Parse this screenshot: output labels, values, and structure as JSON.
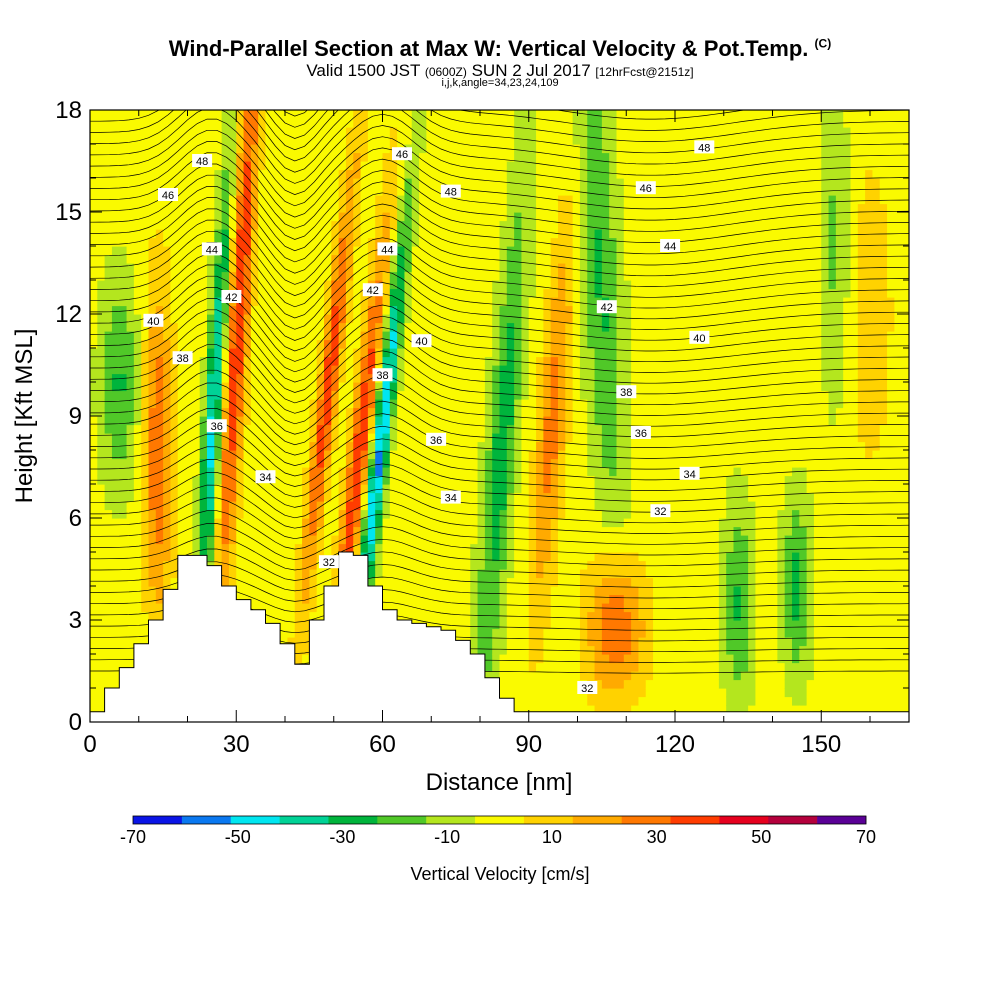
{
  "header": {
    "title": "Wind-Parallel Section at Max W: Vertical Velocity & Pot.Temp.",
    "copyright": "(C)",
    "valid_prefix": "Valid 1500 JST",
    "utc": "(0600Z)",
    "date": "SUN 2 Jul 2017",
    "forecast": "[12hrFcst@2151z]",
    "indices": "i,j,k,angle=34,23,24,109"
  },
  "chart_data": {
    "type": "heatmap",
    "title": "Wind-Parallel Section at Max W: Vertical Velocity & Pot.Temp.",
    "xlabel": "Distance [nm]",
    "ylabel": "Height [Kft MSL]",
    "xlim": [
      0,
      168
    ],
    "ylim": [
      0,
      18
    ],
    "x_ticks": [
      0,
      30,
      60,
      90,
      120,
      150
    ],
    "y_ticks": [
      0,
      3,
      6,
      9,
      12,
      15,
      18
    ],
    "colorbar": {
      "title": "Vertical Velocity [cm/s]",
      "tick_values": [
        -70,
        -50,
        -30,
        -10,
        10,
        30,
        50,
        70
      ],
      "bin_edges": [
        -70,
        -60,
        -50,
        -40,
        -30,
        -20,
        -10,
        0,
        10,
        20,
        30,
        40,
        50,
        60,
        70
      ],
      "colors": [
        "#0a14e6",
        "#0a78f0",
        "#00e6f0",
        "#00d296",
        "#00b43c",
        "#50c828",
        "#b4e61e",
        "#fafa00",
        "#ffd200",
        "#ffaa00",
        "#ff7800",
        "#ff3c00",
        "#e6001e",
        "#b4003c",
        "#5a0096"
      ]
    },
    "potential_temperature_labels": [
      {
        "label": "48",
        "x": 23,
        "y": 16.5
      },
      {
        "label": "46",
        "x": 16,
        "y": 15.5
      },
      {
        "label": "44",
        "x": 25,
        "y": 13.9
      },
      {
        "label": "42",
        "x": 29,
        "y": 12.5
      },
      {
        "label": "40",
        "x": 13,
        "y": 11.8
      },
      {
        "label": "38",
        "x": 19,
        "y": 10.7
      },
      {
        "label": "36",
        "x": 26,
        "y": 8.7
      },
      {
        "label": "34",
        "x": 36,
        "y": 7.2
      },
      {
        "label": "32",
        "x": 49,
        "y": 4.7
      },
      {
        "label": "46",
        "x": 64,
        "y": 16.7
      },
      {
        "label": "48",
        "x": 74,
        "y": 15.6
      },
      {
        "label": "44",
        "x": 61,
        "y": 13.9
      },
      {
        "label": "42",
        "x": 58,
        "y": 12.7
      },
      {
        "label": "40",
        "x": 68,
        "y": 11.2
      },
      {
        "label": "38",
        "x": 60,
        "y": 10.2
      },
      {
        "label": "36",
        "x": 71,
        "y": 8.3
      },
      {
        "label": "34",
        "x": 74,
        "y": 6.6
      },
      {
        "label": "48",
        "x": 126,
        "y": 16.9
      },
      {
        "label": "46",
        "x": 114,
        "y": 15.7
      },
      {
        "label": "44",
        "x": 119,
        "y": 14.0
      },
      {
        "label": "42",
        "x": 106,
        "y": 12.2
      },
      {
        "label": "40",
        "x": 125,
        "y": 11.3
      },
      {
        "label": "38",
        "x": 110,
        "y": 9.7
      },
      {
        "label": "36",
        "x": 113,
        "y": 8.5
      },
      {
        "label": "34",
        "x": 123,
        "y": 7.3
      },
      {
        "label": "32",
        "x": 117,
        "y": 6.2
      },
      {
        "label": "32",
        "x": 102,
        "y": 1.0
      }
    ],
    "terrain": [
      [
        0,
        0.3
      ],
      [
        3,
        1.0
      ],
      [
        6,
        1.6
      ],
      [
        9,
        2.3
      ],
      [
        12,
        3.0
      ],
      [
        15,
        3.9
      ],
      [
        18,
        4.9
      ],
      [
        21,
        4.9
      ],
      [
        24,
        4.6
      ],
      [
        27,
        4.0
      ],
      [
        30,
        3.6
      ],
      [
        33,
        3.3
      ],
      [
        36,
        2.9
      ],
      [
        39,
        2.3
      ],
      [
        42,
        1.7
      ],
      [
        45,
        3.0
      ],
      [
        48,
        4.0
      ],
      [
        51,
        5.0
      ],
      [
        54,
        4.9
      ],
      [
        57,
        4.0
      ],
      [
        60,
        3.3
      ],
      [
        63,
        3.0
      ],
      [
        66,
        2.9
      ],
      [
        69,
        2.8
      ],
      [
        72,
        2.7
      ],
      [
        75,
        2.4
      ],
      [
        78,
        2.0
      ],
      [
        81,
        1.3
      ],
      [
        84,
        0.7
      ],
      [
        87,
        0.3
      ],
      [
        168,
        0.3
      ]
    ]
  }
}
